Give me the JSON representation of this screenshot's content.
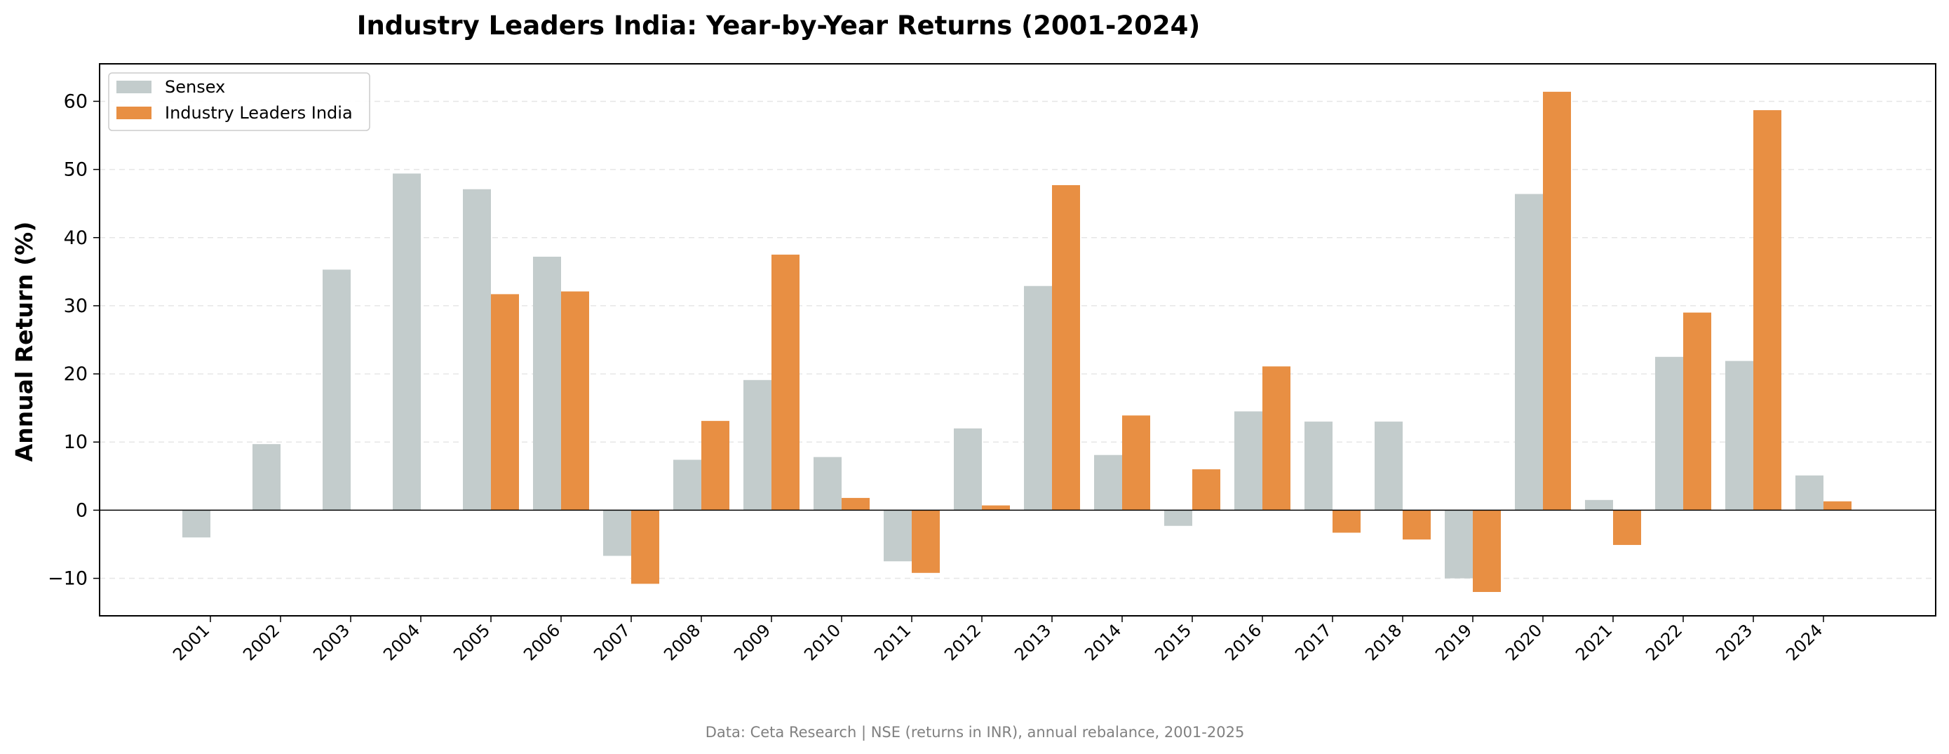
{
  "chart_data": {
    "type": "bar",
    "title": "Industry Leaders India: Year-by-Year Returns (2001-2024)",
    "xlabel": "",
    "ylabel": "Annual Return (%)",
    "ylim": [
      -15.5,
      65.5
    ],
    "yticks": [
      -10,
      0,
      10,
      20,
      30,
      40,
      50,
      60
    ],
    "ytick_labels": [
      "−10",
      "0",
      "10",
      "20",
      "30",
      "40",
      "50",
      "60"
    ],
    "grid": "y-dashed",
    "legend_position": "top-left",
    "categories": [
      "2001",
      "2002",
      "2003",
      "2004",
      "2005",
      "2006",
      "2007",
      "2008",
      "2009",
      "2010",
      "2011",
      "2012",
      "2013",
      "2014",
      "2015",
      "2016",
      "2017",
      "2018",
      "2019",
      "2020",
      "2021",
      "2022",
      "2023",
      "2024"
    ],
    "series": [
      {
        "name": "Sensex",
        "color": "#c3cccc",
        "values": [
          -4.0,
          9.7,
          35.3,
          49.4,
          47.1,
          37.2,
          -6.7,
          7.4,
          19.1,
          7.8,
          -7.5,
          12.0,
          32.9,
          8.1,
          -2.3,
          14.5,
          13.0,
          13.0,
          -10.0,
          46.4,
          1.5,
          22.5,
          21.9,
          5.1
        ]
      },
      {
        "name": "Industry Leaders India",
        "color": "#e88f43",
        "values": [
          null,
          null,
          null,
          null,
          31.7,
          32.1,
          -10.8,
          13.1,
          37.5,
          1.8,
          -9.2,
          0.7,
          47.7,
          13.9,
          6.0,
          21.1,
          -3.3,
          -4.3,
          -12.0,
          61.4,
          -5.1,
          29.0,
          58.7,
          1.3
        ]
      }
    ]
  },
  "footer": "Data: Ceta Research | NSE (returns in INR), annual rebalance, 2001-2025"
}
